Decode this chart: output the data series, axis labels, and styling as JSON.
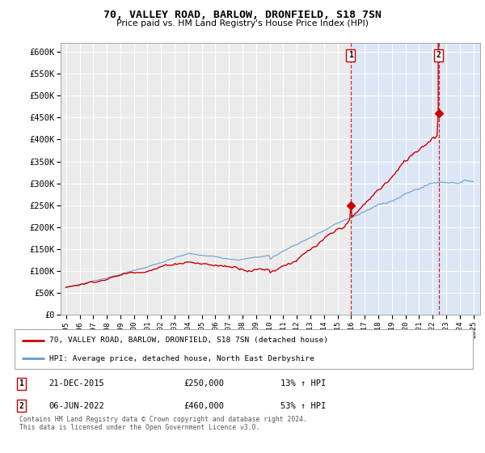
{
  "title": "70, VALLEY ROAD, BARLOW, DRONFIELD, S18 7SN",
  "subtitle": "Price paid vs. HM Land Registry's House Price Index (HPI)",
  "ylim": [
    0,
    620000
  ],
  "yticks": [
    0,
    50000,
    100000,
    150000,
    200000,
    250000,
    300000,
    350000,
    400000,
    450000,
    500000,
    550000,
    600000
  ],
  "ytick_labels": [
    "£0",
    "£50K",
    "£100K",
    "£150K",
    "£200K",
    "£250K",
    "£300K",
    "£350K",
    "£400K",
    "£450K",
    "£500K",
    "£550K",
    "£600K"
  ],
  "bg_color": "#ffffff",
  "plot_bg_color": "#ebebeb",
  "highlight_bg_color": "#dce6f5",
  "grid_color": "#ffffff",
  "sale1_date_idx": 20.95,
  "sale1_value": 250000,
  "sale1_label": "1",
  "sale1_date_str": "21-DEC-2015",
  "sale1_price_str": "£250,000",
  "sale1_hpi_str": "13% ↑ HPI",
  "sale2_date_idx": 27.45,
  "sale2_value": 460000,
  "sale2_label": "2",
  "sale2_date_str": "06-JUN-2022",
  "sale2_price_str": "£460,000",
  "sale2_hpi_str": "53% ↑ HPI",
  "legend_line1": "70, VALLEY ROAD, BARLOW, DRONFIELD, S18 7SN (detached house)",
  "legend_line2": "HPI: Average price, detached house, North East Derbyshire",
  "footer": "Contains HM Land Registry data © Crown copyright and database right 2024.\nThis data is licensed under the Open Government Licence v3.0.",
  "line_red": "#cc0000",
  "line_blue": "#6699cc",
  "marker_red": "#cc0000",
  "dashed_red": "#cc0000"
}
